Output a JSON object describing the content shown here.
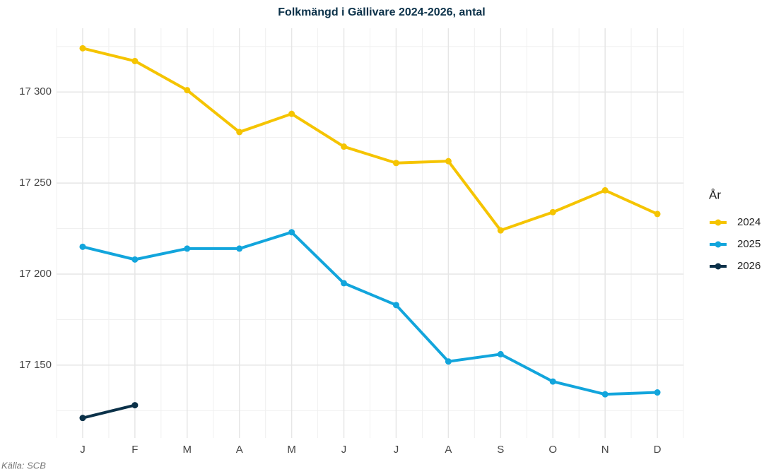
{
  "chart_data": {
    "type": "line",
    "title": "Folkmängd i Gällivare 2024-2026, antal",
    "caption": "Källa: SCB",
    "legend_title": "År",
    "legend": "right",
    "grid": true,
    "categories": [
      "J",
      "F",
      "M",
      "A",
      "M",
      "J",
      "J",
      "A",
      "S",
      "O",
      "N",
      "D"
    ],
    "ylim": [
      17110,
      17335
    ],
    "yticks": [
      {
        "value": 17150,
        "label": "17 150"
      },
      {
        "value": 17200,
        "label": "17 200"
      },
      {
        "value": 17250,
        "label": "17 250"
      },
      {
        "value": 17300,
        "label": "17 300"
      }
    ],
    "minor_yticks": [
      17125,
      17175,
      17225,
      17275,
      17325
    ],
    "series": [
      {
        "name": "2024",
        "color": "#f5c400",
        "values": [
          17324,
          17317,
          17301,
          17278,
          17288,
          17270,
          17261,
          17262,
          17224,
          17234,
          17246,
          17233
        ]
      },
      {
        "name": "2025",
        "color": "#12a5dc",
        "values": [
          17215,
          17208,
          17214,
          17214,
          17223,
          17195,
          17183,
          17152,
          17156,
          17141,
          17134,
          17135
        ]
      },
      {
        "name": "2026",
        "color": "#0b3149",
        "values": [
          17121,
          17128,
          null,
          null,
          null,
          null,
          null,
          null,
          null,
          null,
          null,
          null
        ]
      }
    ]
  }
}
